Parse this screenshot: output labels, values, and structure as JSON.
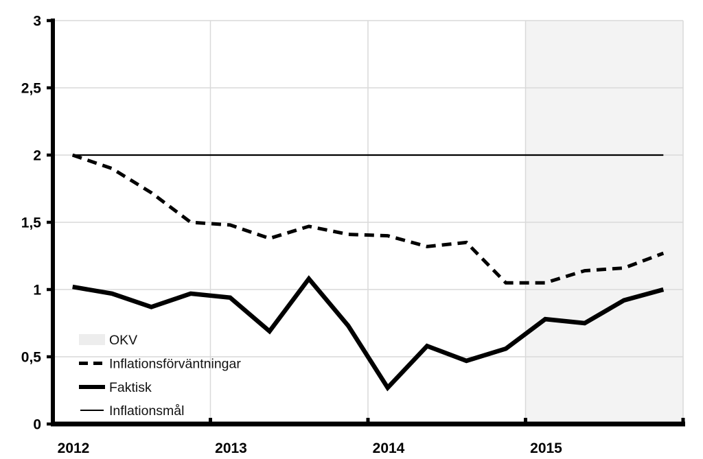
{
  "chart_data": {
    "type": "line",
    "title": "",
    "xlabel": "",
    "ylabel": "",
    "x_categories": [
      "2012 Q1",
      "2012 Q2",
      "2012 Q3",
      "2012 Q4",
      "2013 Q1",
      "2013 Q2",
      "2013 Q3",
      "2013 Q4",
      "2014 Q1",
      "2014 Q2",
      "2014 Q3",
      "2014 Q4",
      "2015 Q1",
      "2015 Q2",
      "2015 Q3",
      "2015 Q4"
    ],
    "year_labels": [
      "2012",
      "2013",
      "2014",
      "2015"
    ],
    "ylim": [
      0,
      3
    ],
    "grid": true,
    "y_ticks": [
      {
        "value": 0,
        "label": "0"
      },
      {
        "value": 0.5,
        "label": "0,5"
      },
      {
        "value": 1,
        "label": "1"
      },
      {
        "value": 1.5,
        "label": "1,5"
      },
      {
        "value": 2,
        "label": "2"
      },
      {
        "value": 2.5,
        "label": "2,5"
      },
      {
        "value": 3,
        "label": "3"
      }
    ],
    "series": [
      {
        "name": "Inflationsförväntningar",
        "slug": "inflationsforvantningar",
        "style": "dashed",
        "color": "#000000",
        "values": [
          2.0,
          1.9,
          1.72,
          1.5,
          1.48,
          1.38,
          1.47,
          1.41,
          1.4,
          1.32,
          1.35,
          1.05,
          1.05,
          1.14,
          1.16,
          1.27
        ]
      },
      {
        "name": "Faktisk",
        "slug": "faktisk",
        "style": "thick",
        "color": "#000000",
        "values": [
          1.02,
          0.97,
          0.87,
          0.97,
          0.94,
          0.69,
          1.08,
          0.73,
          0.27,
          0.58,
          0.47,
          0.56,
          0.78,
          0.75,
          0.92,
          1.0
        ]
      },
      {
        "name": "Inflationsmål",
        "slug": "inflationsmal",
        "style": "thin",
        "color": "#000000",
        "values": [
          2,
          2,
          2,
          2,
          2,
          2,
          2,
          2,
          2,
          2,
          2,
          2,
          2,
          2,
          2,
          2
        ]
      }
    ],
    "shaded_region": {
      "label": "OKV",
      "from": "2015 Q1",
      "to": "2015 Q4",
      "color": "#f3f3f3"
    },
    "legend": {
      "position": "inside-bottom-left",
      "items": [
        {
          "label": "OKV",
          "swatch": "area"
        },
        {
          "label": "Inflationsförväntningar",
          "swatch": "dashed"
        },
        {
          "label": "Faktisk",
          "swatch": "thick"
        },
        {
          "label": "Inflationsmål",
          "swatch": "thin"
        }
      ]
    },
    "colors": {
      "line": "#000000",
      "grid": "#d9d9d9",
      "shade": "#f3f3f3",
      "legend_swatch_area": "#ededed",
      "background": "#ffffff",
      "text": "#000000"
    }
  }
}
